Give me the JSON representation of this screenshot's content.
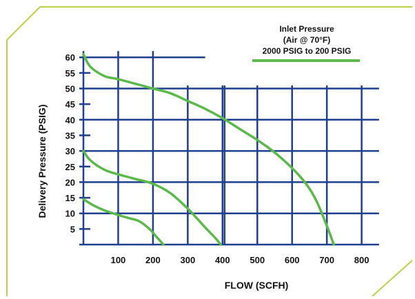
{
  "chart_data": {
    "type": "line",
    "xlabel": "FLOW (SCFH)",
    "ylabel": "Delivery Pressure (PSIG)",
    "x_ticks": [
      100,
      200,
      300,
      400,
      500,
      600,
      700,
      800
    ],
    "y_ticks": [
      5,
      10,
      15,
      20,
      25,
      30,
      35,
      40,
      45,
      50,
      55,
      60
    ],
    "xlim": [
      0,
      850
    ],
    "ylim": [
      0,
      62
    ],
    "grid": true,
    "legend": {
      "lines": [
        "Inlet Pressure",
        "(Air @ 70°F)",
        "2000 PSIG to 200 PSIG"
      ],
      "placement": "top-right"
    },
    "series": [
      {
        "x": [
          0,
          20,
          60,
          100,
          150,
          200,
          250,
          300,
          350,
          400,
          450,
          500,
          550,
          600,
          640,
          670,
          700,
          720
        ],
        "y": [
          61,
          57,
          54,
          53,
          51.5,
          50,
          48.5,
          46,
          43.5,
          40.5,
          37,
          33.5,
          29.5,
          24.5,
          19.5,
          14,
          6,
          0
        ]
      },
      {
        "x": [
          0,
          20,
          60,
          100,
          150,
          200,
          250,
          300,
          350,
          380,
          395
        ],
        "y": [
          30,
          27,
          24,
          22.5,
          21,
          19.5,
          16.5,
          11.5,
          5.5,
          2,
          0
        ]
      },
      {
        "x": [
          0,
          30,
          60,
          100,
          130,
          160,
          190,
          210,
          230
        ],
        "y": [
          14.5,
          12.5,
          11,
          9.5,
          8.5,
          7.5,
          5,
          2.5,
          0
        ]
      }
    ],
    "colors": {
      "series": "#5bb84a",
      "grid": "#1e3f8f",
      "frame": "#b9d14a"
    }
  }
}
